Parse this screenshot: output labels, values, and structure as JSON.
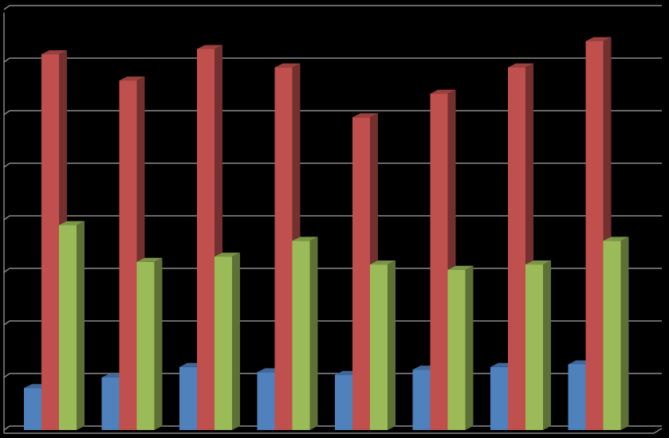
{
  "chart_data": {
    "type": "bar3d",
    "categories": [
      null,
      null,
      null,
      null,
      null,
      null,
      null,
      null
    ],
    "series": [
      {
        "color": "#4f81bd",
        "values": [
          0.8,
          1.0,
          1.2,
          1.1,
          1.05,
          1.15,
          1.2,
          1.25
        ]
      },
      {
        "color": "#c0504d",
        "values": [
          7.15,
          6.65,
          7.25,
          6.9,
          5.95,
          6.4,
          6.9,
          7.4
        ]
      },
      {
        "color": "#9bbb59",
        "values": [
          3.9,
          3.2,
          3.3,
          3.6,
          3.15,
          3.05,
          3.15,
          3.6
        ]
      }
    ],
    "ylim": [
      0,
      8
    ],
    "yticks": [
      0,
      1,
      2,
      3,
      4,
      5,
      6,
      7,
      8
    ],
    "grid": true
  }
}
